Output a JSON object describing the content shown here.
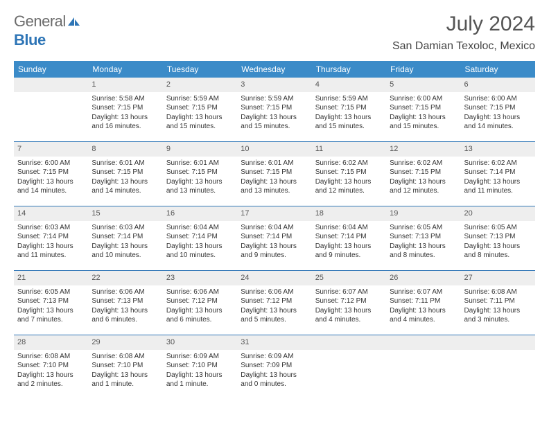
{
  "logo": {
    "text_general": "General",
    "text_blue": "Blue"
  },
  "header": {
    "month_title": "July 2024",
    "location": "San Damian Texoloc, Mexico"
  },
  "colors": {
    "header_bg": "#3b8bc8",
    "row_border": "#2e75b6",
    "daynum_bg": "#eeeeee"
  },
  "days_of_week": [
    "Sunday",
    "Monday",
    "Tuesday",
    "Wednesday",
    "Thursday",
    "Friday",
    "Saturday"
  ],
  "weeks": [
    [
      {
        "empty": true
      },
      {
        "n": "1",
        "sr": "Sunrise: 5:58 AM",
        "ss": "Sunset: 7:15 PM",
        "dl1": "Daylight: 13 hours",
        "dl2": "and 16 minutes."
      },
      {
        "n": "2",
        "sr": "Sunrise: 5:59 AM",
        "ss": "Sunset: 7:15 PM",
        "dl1": "Daylight: 13 hours",
        "dl2": "and 15 minutes."
      },
      {
        "n": "3",
        "sr": "Sunrise: 5:59 AM",
        "ss": "Sunset: 7:15 PM",
        "dl1": "Daylight: 13 hours",
        "dl2": "and 15 minutes."
      },
      {
        "n": "4",
        "sr": "Sunrise: 5:59 AM",
        "ss": "Sunset: 7:15 PM",
        "dl1": "Daylight: 13 hours",
        "dl2": "and 15 minutes."
      },
      {
        "n": "5",
        "sr": "Sunrise: 6:00 AM",
        "ss": "Sunset: 7:15 PM",
        "dl1": "Daylight: 13 hours",
        "dl2": "and 15 minutes."
      },
      {
        "n": "6",
        "sr": "Sunrise: 6:00 AM",
        "ss": "Sunset: 7:15 PM",
        "dl1": "Daylight: 13 hours",
        "dl2": "and 14 minutes."
      }
    ],
    [
      {
        "n": "7",
        "sr": "Sunrise: 6:00 AM",
        "ss": "Sunset: 7:15 PM",
        "dl1": "Daylight: 13 hours",
        "dl2": "and 14 minutes."
      },
      {
        "n": "8",
        "sr": "Sunrise: 6:01 AM",
        "ss": "Sunset: 7:15 PM",
        "dl1": "Daylight: 13 hours",
        "dl2": "and 14 minutes."
      },
      {
        "n": "9",
        "sr": "Sunrise: 6:01 AM",
        "ss": "Sunset: 7:15 PM",
        "dl1": "Daylight: 13 hours",
        "dl2": "and 13 minutes."
      },
      {
        "n": "10",
        "sr": "Sunrise: 6:01 AM",
        "ss": "Sunset: 7:15 PM",
        "dl1": "Daylight: 13 hours",
        "dl2": "and 13 minutes."
      },
      {
        "n": "11",
        "sr": "Sunrise: 6:02 AM",
        "ss": "Sunset: 7:15 PM",
        "dl1": "Daylight: 13 hours",
        "dl2": "and 12 minutes."
      },
      {
        "n": "12",
        "sr": "Sunrise: 6:02 AM",
        "ss": "Sunset: 7:15 PM",
        "dl1": "Daylight: 13 hours",
        "dl2": "and 12 minutes."
      },
      {
        "n": "13",
        "sr": "Sunrise: 6:02 AM",
        "ss": "Sunset: 7:14 PM",
        "dl1": "Daylight: 13 hours",
        "dl2": "and 11 minutes."
      }
    ],
    [
      {
        "n": "14",
        "sr": "Sunrise: 6:03 AM",
        "ss": "Sunset: 7:14 PM",
        "dl1": "Daylight: 13 hours",
        "dl2": "and 11 minutes."
      },
      {
        "n": "15",
        "sr": "Sunrise: 6:03 AM",
        "ss": "Sunset: 7:14 PM",
        "dl1": "Daylight: 13 hours",
        "dl2": "and 10 minutes."
      },
      {
        "n": "16",
        "sr": "Sunrise: 6:04 AM",
        "ss": "Sunset: 7:14 PM",
        "dl1": "Daylight: 13 hours",
        "dl2": "and 10 minutes."
      },
      {
        "n": "17",
        "sr": "Sunrise: 6:04 AM",
        "ss": "Sunset: 7:14 PM",
        "dl1": "Daylight: 13 hours",
        "dl2": "and 9 minutes."
      },
      {
        "n": "18",
        "sr": "Sunrise: 6:04 AM",
        "ss": "Sunset: 7:14 PM",
        "dl1": "Daylight: 13 hours",
        "dl2": "and 9 minutes."
      },
      {
        "n": "19",
        "sr": "Sunrise: 6:05 AM",
        "ss": "Sunset: 7:13 PM",
        "dl1": "Daylight: 13 hours",
        "dl2": "and 8 minutes."
      },
      {
        "n": "20",
        "sr": "Sunrise: 6:05 AM",
        "ss": "Sunset: 7:13 PM",
        "dl1": "Daylight: 13 hours",
        "dl2": "and 8 minutes."
      }
    ],
    [
      {
        "n": "21",
        "sr": "Sunrise: 6:05 AM",
        "ss": "Sunset: 7:13 PM",
        "dl1": "Daylight: 13 hours",
        "dl2": "and 7 minutes."
      },
      {
        "n": "22",
        "sr": "Sunrise: 6:06 AM",
        "ss": "Sunset: 7:13 PM",
        "dl1": "Daylight: 13 hours",
        "dl2": "and 6 minutes."
      },
      {
        "n": "23",
        "sr": "Sunrise: 6:06 AM",
        "ss": "Sunset: 7:12 PM",
        "dl1": "Daylight: 13 hours",
        "dl2": "and 6 minutes."
      },
      {
        "n": "24",
        "sr": "Sunrise: 6:06 AM",
        "ss": "Sunset: 7:12 PM",
        "dl1": "Daylight: 13 hours",
        "dl2": "and 5 minutes."
      },
      {
        "n": "25",
        "sr": "Sunrise: 6:07 AM",
        "ss": "Sunset: 7:12 PM",
        "dl1": "Daylight: 13 hours",
        "dl2": "and 4 minutes."
      },
      {
        "n": "26",
        "sr": "Sunrise: 6:07 AM",
        "ss": "Sunset: 7:11 PM",
        "dl1": "Daylight: 13 hours",
        "dl2": "and 4 minutes."
      },
      {
        "n": "27",
        "sr": "Sunrise: 6:08 AM",
        "ss": "Sunset: 7:11 PM",
        "dl1": "Daylight: 13 hours",
        "dl2": "and 3 minutes."
      }
    ],
    [
      {
        "n": "28",
        "sr": "Sunrise: 6:08 AM",
        "ss": "Sunset: 7:10 PM",
        "dl1": "Daylight: 13 hours",
        "dl2": "and 2 minutes."
      },
      {
        "n": "29",
        "sr": "Sunrise: 6:08 AM",
        "ss": "Sunset: 7:10 PM",
        "dl1": "Daylight: 13 hours",
        "dl2": "and 1 minute."
      },
      {
        "n": "30",
        "sr": "Sunrise: 6:09 AM",
        "ss": "Sunset: 7:10 PM",
        "dl1": "Daylight: 13 hours",
        "dl2": "and 1 minute."
      },
      {
        "n": "31",
        "sr": "Sunrise: 6:09 AM",
        "ss": "Sunset: 7:09 PM",
        "dl1": "Daylight: 13 hours",
        "dl2": "and 0 minutes."
      },
      {
        "empty": true
      },
      {
        "empty": true
      },
      {
        "empty": true
      }
    ]
  ]
}
